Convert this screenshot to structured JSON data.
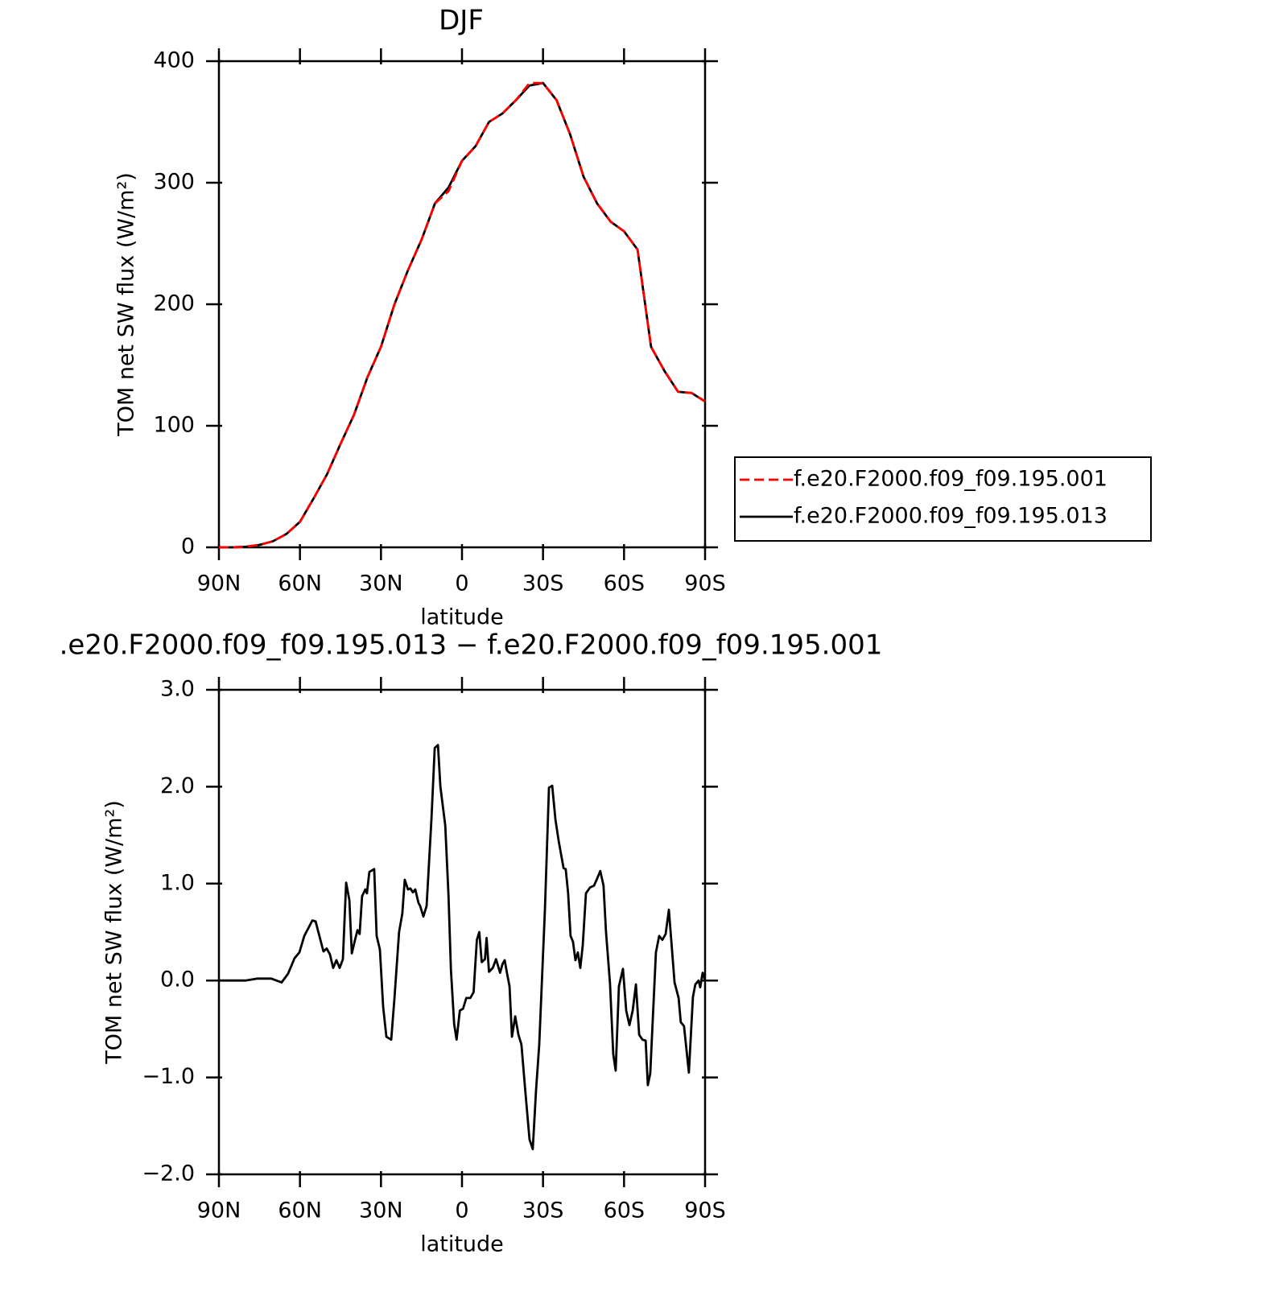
{
  "chart_data": [
    {
      "type": "line",
      "title": "DJF",
      "xlabel": "latitude",
      "ylabel": "TOM net SW flux (W/m²)",
      "xlim": [
        90,
        -90
      ],
      "xticks": [
        {
          "value": 90,
          "label": "90N"
        },
        {
          "value": 60,
          "label": "60N"
        },
        {
          "value": 30,
          "label": "30N"
        },
        0,
        {
          "value": -30,
          "label": "30S"
        },
        {
          "value": -60,
          "label": "60S"
        },
        {
          "value": -90,
          "label": "90S"
        }
      ],
      "ylim": [
        0,
        400
      ],
      "yticks": [
        0,
        100,
        200,
        300,
        400
      ],
      "legend": "outside-right",
      "x": [
        90,
        85,
        80,
        75,
        70,
        65,
        60,
        55,
        50,
        45,
        40,
        35,
        30,
        25,
        20,
        15,
        10,
        5,
        0,
        -5,
        -10,
        -15,
        -20,
        -25,
        -30,
        -35,
        -40,
        -45,
        -50,
        -55,
        -60,
        -65,
        -70,
        -75,
        -80,
        -85,
        -90
      ],
      "series": [
        {
          "name": "f.e20.F2000.f09_f09.195.001",
          "color": "#ff0000",
          "dashed": true,
          "values": [
            0,
            0,
            0.5,
            2,
            5,
            11,
            21,
            40,
            60,
            85,
            109,
            140,
            165,
            200,
            228,
            253,
            283,
            293,
            318,
            330,
            350,
            357,
            368,
            382,
            382,
            368,
            340,
            305,
            283,
            268,
            260,
            245,
            165,
            145,
            128,
            127,
            120
          ]
        },
        {
          "name": "f.e20.F2000.f09_f09.195.013",
          "color": "#000000",
          "dashed": false,
          "values": [
            0,
            0,
            0.5,
            2,
            5,
            11,
            21,
            40,
            60,
            85,
            109,
            140,
            165,
            200,
            228,
            253,
            283,
            296,
            318,
            330,
            350,
            357,
            368,
            380,
            382,
            368,
            340,
            305,
            283,
            268,
            260,
            245,
            165,
            145,
            128,
            127,
            120
          ]
        }
      ]
    },
    {
      "type": "line",
      "title": ".e20.F2000.f09_f09.195.013 − f.e20.F2000.f09_f09.195.001",
      "xlabel": "latitude",
      "ylabel": "TOM net SW flux (W/m²)",
      "xlim": [
        90,
        -90
      ],
      "xticks": [
        {
          "value": 90,
          "label": "90N"
        },
        {
          "value": 60,
          "label": "60N"
        },
        {
          "value": 30,
          "label": "30N"
        },
        0,
        {
          "value": -30,
          "label": "30S"
        },
        {
          "value": -60,
          "label": "60S"
        },
        {
          "value": -90,
          "label": "90S"
        }
      ],
      "ylim": [
        -2,
        3
      ],
      "yticks": [
        {
          "value": -2,
          "label": "−2.0"
        },
        {
          "value": -1,
          "label": "−1.0"
        },
        {
          "value": 0,
          "label": "0.0"
        },
        {
          "value": 1,
          "label": "1.0"
        },
        {
          "value": 2,
          "label": "2.0"
        },
        {
          "value": 3,
          "label": "3.0"
        }
      ],
      "x": [
        90,
        80.2,
        75.7,
        70.6,
        66.8,
        64.4,
        62,
        60.2,
        58.4,
        55.4,
        54.2,
        53,
        51.3,
        50.1,
        48.9,
        47.7,
        46.5,
        45.3,
        44.1,
        42.9,
        41.7,
        40.8,
        39.6,
        38.7,
        37.9,
        37,
        35.8,
        35.2,
        34.3,
        32.5,
        31.6,
        30.4,
        29.2,
        28,
        26.2,
        25,
        23.3,
        22.1,
        21.2,
        20,
        19.1,
        18.2,
        17.3,
        16.1,
        15.5,
        14.3,
        13.1,
        11.3,
        10.1,
        8.9,
        8,
        6.2,
        5,
        4.1,
        2.9,
        2,
        0.8,
        -0.4,
        -1.6,
        -3.1,
        -4.3,
        -5.5,
        -6.4,
        -7.3,
        -8.5,
        -9.1,
        -10,
        -11.4,
        -12.6,
        -14.1,
        -15,
        -15.8,
        -16.7,
        -17.6,
        -18.5,
        -19.7,
        -20.9,
        -22,
        -23.5,
        -25,
        -26.2,
        -27.4,
        -28.6,
        -30.7,
        -32.2,
        -33.4,
        -34.6,
        -35.8,
        -37.6,
        -38.4,
        -39.3,
        -40.2,
        -41.1,
        -42,
        -42.9,
        -43.8,
        -44.7,
        -45.9,
        -47.4,
        -48.9,
        -50,
        -51.2,
        -52.4,
        -53.3,
        -54.8,
        -56,
        -56.9,
        -58.1,
        -59.6,
        -60.8,
        -62,
        -63.2,
        -64.4,
        -65.6,
        -66.8,
        -68,
        -68.8,
        -69.7,
        -71.8,
        -73,
        -74.2,
        -75.4,
        -76.6,
        -78.7,
        -80.2,
        -81,
        -82.2,
        -84,
        -85.5,
        -86.4,
        -87.6,
        -88.2,
        -89.1,
        -90
      ],
      "series": [
        {
          "color": "#000000",
          "dashed": false,
          "values": [
            0,
            0,
            0.02,
            0.02,
            -0.02,
            0.07,
            0.23,
            0.29,
            0.46,
            0.62,
            0.61,
            0.48,
            0.3,
            0.33,
            0.27,
            0.13,
            0.21,
            0.13,
            0.22,
            1.01,
            0.83,
            0.28,
            0.42,
            0.52,
            0.48,
            0.87,
            0.94,
            0.9,
            1.12,
            1.15,
            0.46,
            0.32,
            -0.27,
            -0.58,
            -0.61,
            -0.18,
            0.5,
            0.69,
            1.04,
            0.94,
            0.95,
            0.91,
            0.94,
            0.8,
            0.77,
            0.66,
            0.77,
            1.67,
            2.4,
            2.43,
            2.0,
            1.6,
            0.88,
            0.11,
            -0.45,
            -0.61,
            -0.31,
            -0.29,
            -0.18,
            -0.18,
            -0.12,
            0.42,
            0.5,
            0.19,
            0.22,
            0.44,
            0.09,
            0.13,
            0.22,
            0.08,
            0.17,
            0.21,
            0.07,
            -0.06,
            -0.58,
            -0.37,
            -0.56,
            -0.66,
            -1.16,
            -1.64,
            -1.74,
            -1.14,
            -0.66,
            0.73,
            1.99,
            2.01,
            1.66,
            1.44,
            1.16,
            1.15,
            0.9,
            0.46,
            0.4,
            0.21,
            0.29,
            0.13,
            0.36,
            0.9,
            0.96,
            0.98,
            1.05,
            1.13,
            0.98,
            0.51,
            -0.03,
            -0.76,
            -0.93,
            -0.06,
            0.12,
            -0.31,
            -0.46,
            -0.31,
            -0.04,
            -0.56,
            -0.61,
            -0.62,
            -1.08,
            -0.96,
            0.29,
            0.46,
            0.42,
            0.48,
            0.73,
            -0.02,
            -0.18,
            -0.43,
            -0.47,
            -0.95,
            -0.17,
            -0.04,
            0,
            -0.07,
            0.08,
            0
          ]
        }
      ]
    }
  ]
}
